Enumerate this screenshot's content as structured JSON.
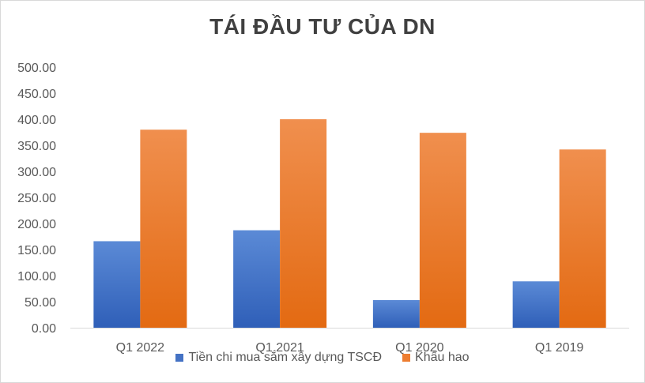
{
  "chart_data": {
    "type": "bar",
    "title": "TÁI ĐẦU TƯ CỦA DN",
    "categories": [
      "Q1 2022",
      "Q1 2021",
      "Q1 2020",
      "Q1 2019"
    ],
    "series": [
      {
        "name": "Tiền chi mua sắm xây dựng TSCĐ",
        "values": [
          166,
          187,
          53,
          89
        ],
        "color": "#4472C4"
      },
      {
        "name": "Khấu hao",
        "values": [
          380,
          400,
          374,
          342
        ],
        "color": "#ED7D31"
      }
    ],
    "ylim": [
      0,
      500
    ],
    "yticks": [
      "0.00",
      "50.00",
      "100.00",
      "150.00",
      "200.00",
      "250.00",
      "300.00",
      "350.00",
      "400.00",
      "450.00",
      "500.00"
    ],
    "xlabel": "",
    "ylabel": "",
    "grid": false,
    "legend_position": "bottom"
  }
}
